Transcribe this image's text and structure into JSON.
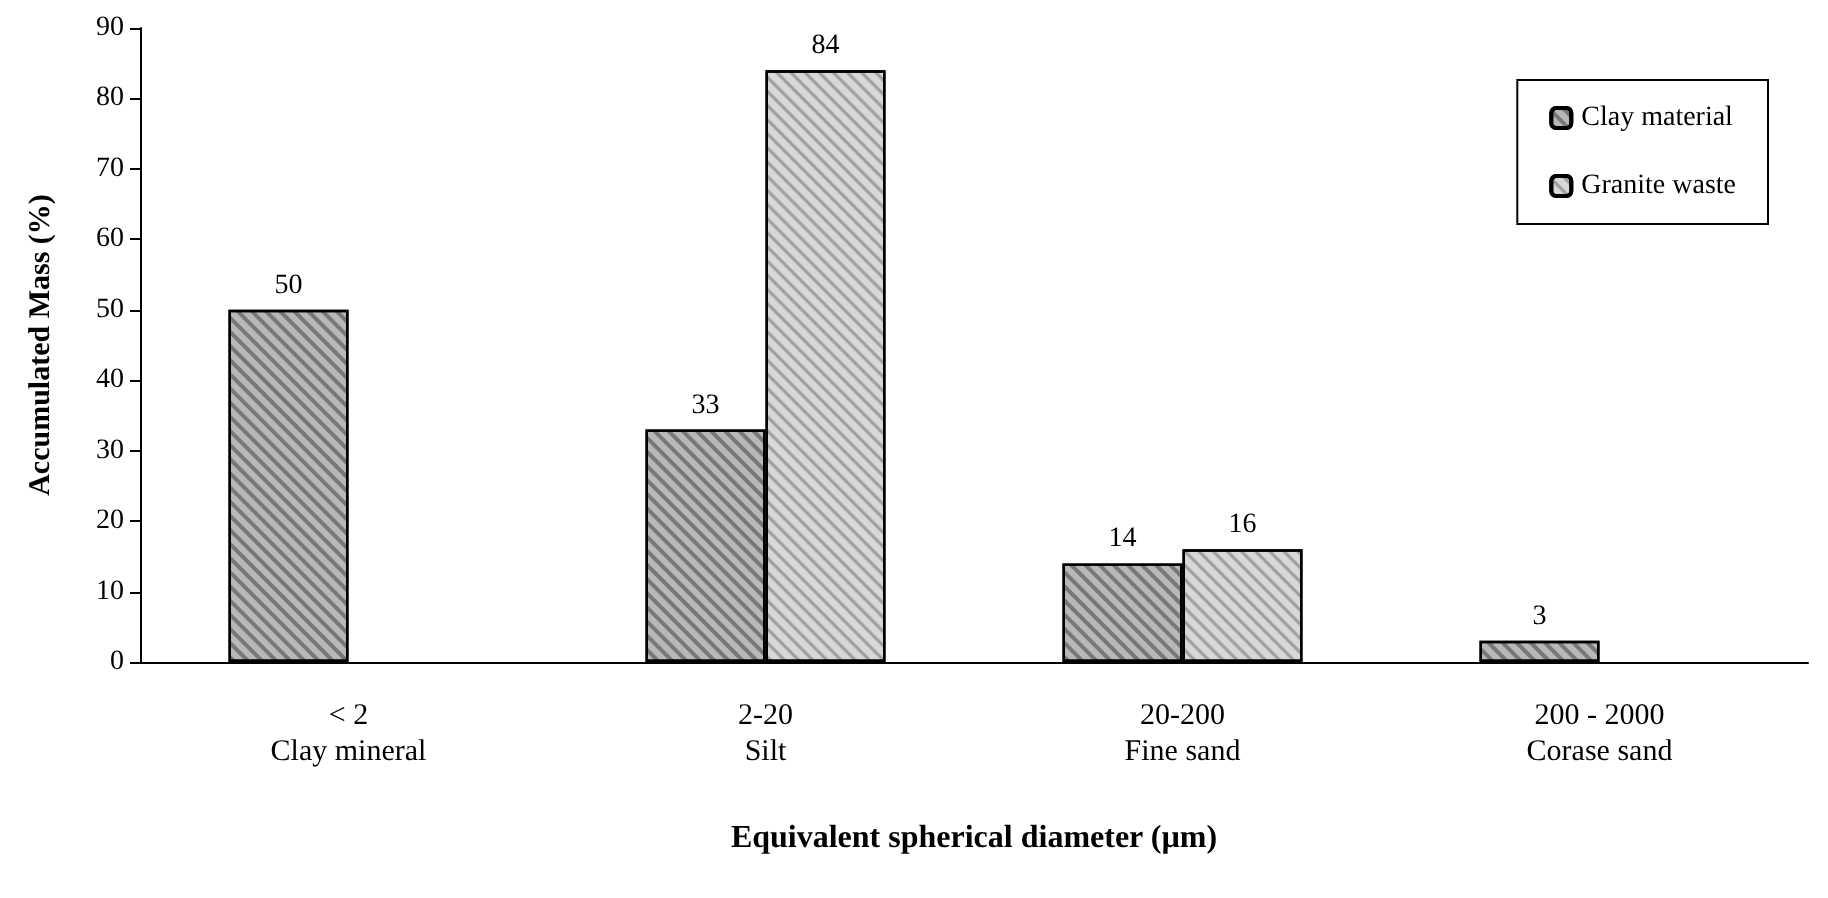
{
  "chart_data": {
    "type": "bar",
    "xlabel": "Equivalent spherical diameter (µm)",
    "ylabel": "Accumulated Mass (%)",
    "categories": [
      "< 2\nClay mineral",
      "2-20\nSilt",
      "20-200\nFine sand",
      "200 - 2000\nCorase sand"
    ],
    "series": [
      {
        "name": "Clay material",
        "color": "#b8b8b8",
        "values": [
          50,
          33,
          14,
          3
        ]
      },
      {
        "name": "Granite waste",
        "color": "#d8d8d8",
        "values": [
          null,
          84,
          16,
          null
        ]
      }
    ],
    "ylim": [
      0,
      90
    ],
    "yticks": [
      0,
      10,
      20,
      30,
      40,
      50,
      60,
      70,
      80,
      90
    ],
    "grid": false,
    "legend": "top right",
    "data_labels": true
  }
}
